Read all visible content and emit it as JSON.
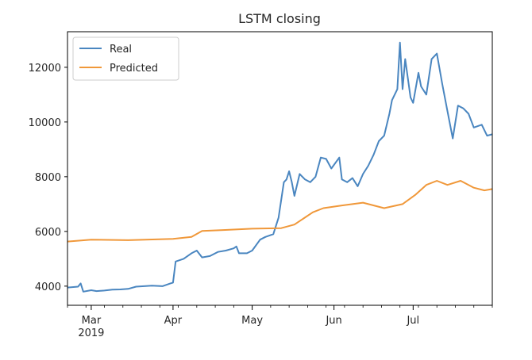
{
  "chart_data": {
    "type": "line",
    "title": "LSTM closing",
    "xlabel": "",
    "ylabel": "",
    "x_range": [
      "2019-02-20",
      "2019-07-31"
    ],
    "ylim": [
      3300,
      13300
    ],
    "y_ticks": [
      4000,
      6000,
      8000,
      10000,
      12000
    ],
    "x_ticks": [
      {
        "date": "2019-03-01",
        "label": "Mar",
        "sublabel": "2019"
      },
      {
        "date": "2019-04-01",
        "label": "Apr",
        "sublabel": ""
      },
      {
        "date": "2019-05-01",
        "label": "May",
        "sublabel": ""
      },
      {
        "date": "2019-06-01",
        "label": "Jun",
        "sublabel": ""
      },
      {
        "date": "2019-07-01",
        "label": "Jul",
        "sublabel": ""
      }
    ],
    "grid": false,
    "legend_position": "top-left",
    "series": [
      {
        "name": "Real",
        "color": "#4a86c0",
        "points": [
          [
            "2019-02-20",
            3950
          ],
          [
            "2019-02-24",
            3980
          ],
          [
            "2019-02-25",
            4100
          ],
          [
            "2019-02-26",
            3800
          ],
          [
            "2019-03-01",
            3850
          ],
          [
            "2019-03-03",
            3820
          ],
          [
            "2019-03-06",
            3840
          ],
          [
            "2019-03-09",
            3870
          ],
          [
            "2019-03-12",
            3880
          ],
          [
            "2019-03-15",
            3900
          ],
          [
            "2019-03-18",
            3980
          ],
          [
            "2019-03-21",
            4000
          ],
          [
            "2019-03-24",
            4020
          ],
          [
            "2019-03-28",
            4000
          ],
          [
            "2019-03-31",
            4100
          ],
          [
            "2019-04-01",
            4130
          ],
          [
            "2019-04-02",
            4900
          ],
          [
            "2019-04-05",
            5000
          ],
          [
            "2019-04-08",
            5200
          ],
          [
            "2019-04-10",
            5300
          ],
          [
            "2019-04-12",
            5050
          ],
          [
            "2019-04-15",
            5100
          ],
          [
            "2019-04-18",
            5250
          ],
          [
            "2019-04-21",
            5300
          ],
          [
            "2019-04-24",
            5380
          ],
          [
            "2019-04-25",
            5450
          ],
          [
            "2019-04-26",
            5200
          ],
          [
            "2019-04-29",
            5200
          ],
          [
            "2019-05-01",
            5300
          ],
          [
            "2019-05-04",
            5700
          ],
          [
            "2019-05-06",
            5800
          ],
          [
            "2019-05-09",
            5900
          ],
          [
            "2019-05-11",
            6500
          ],
          [
            "2019-05-13",
            7800
          ],
          [
            "2019-05-14",
            7900
          ],
          [
            "2019-05-15",
            8200
          ],
          [
            "2019-05-16",
            7800
          ],
          [
            "2019-05-17",
            7300
          ],
          [
            "2019-05-19",
            8100
          ],
          [
            "2019-05-21",
            7900
          ],
          [
            "2019-05-23",
            7800
          ],
          [
            "2019-05-25",
            8000
          ],
          [
            "2019-05-27",
            8700
          ],
          [
            "2019-05-29",
            8650
          ],
          [
            "2019-05-31",
            8300
          ],
          [
            "2019-06-03",
            8700
          ],
          [
            "2019-06-04",
            7900
          ],
          [
            "2019-06-06",
            7800
          ],
          [
            "2019-06-08",
            7950
          ],
          [
            "2019-06-10",
            7650
          ],
          [
            "2019-06-12",
            8100
          ],
          [
            "2019-06-14",
            8400
          ],
          [
            "2019-06-16",
            8800
          ],
          [
            "2019-06-18",
            9300
          ],
          [
            "2019-06-20",
            9500
          ],
          [
            "2019-06-22",
            10300
          ],
          [
            "2019-06-23",
            10800
          ],
          [
            "2019-06-25",
            11200
          ],
          [
            "2019-06-26",
            12900
          ],
          [
            "2019-06-27",
            11200
          ],
          [
            "2019-06-28",
            12300
          ],
          [
            "2019-06-30",
            10900
          ],
          [
            "2019-07-01",
            10700
          ],
          [
            "2019-07-03",
            11800
          ],
          [
            "2019-07-04",
            11300
          ],
          [
            "2019-07-06",
            11000
          ],
          [
            "2019-07-08",
            12300
          ],
          [
            "2019-07-10",
            12500
          ],
          [
            "2019-07-12",
            11400
          ],
          [
            "2019-07-14",
            10400
          ],
          [
            "2019-07-16",
            9400
          ],
          [
            "2019-07-18",
            10600
          ],
          [
            "2019-07-20",
            10500
          ],
          [
            "2019-07-22",
            10300
          ],
          [
            "2019-07-24",
            9800
          ],
          [
            "2019-07-27",
            9900
          ],
          [
            "2019-07-29",
            9500
          ],
          [
            "2019-07-31",
            9550
          ]
        ]
      },
      {
        "name": "Predicted",
        "color": "#f0983a",
        "points": [
          [
            "2019-02-20",
            5630
          ],
          [
            "2019-03-01",
            5700
          ],
          [
            "2019-03-15",
            5680
          ],
          [
            "2019-04-01",
            5730
          ],
          [
            "2019-04-08",
            5800
          ],
          [
            "2019-04-12",
            6020
          ],
          [
            "2019-04-20",
            6050
          ],
          [
            "2019-05-01",
            6100
          ],
          [
            "2019-05-12",
            6120
          ],
          [
            "2019-05-17",
            6250
          ],
          [
            "2019-05-24",
            6700
          ],
          [
            "2019-05-28",
            6850
          ],
          [
            "2019-06-04",
            6950
          ],
          [
            "2019-06-12",
            7050
          ],
          [
            "2019-06-20",
            6850
          ],
          [
            "2019-06-27",
            7000
          ],
          [
            "2019-07-02",
            7350
          ],
          [
            "2019-07-06",
            7700
          ],
          [
            "2019-07-10",
            7850
          ],
          [
            "2019-07-14",
            7700
          ],
          [
            "2019-07-19",
            7850
          ],
          [
            "2019-07-24",
            7600
          ],
          [
            "2019-07-28",
            7500
          ],
          [
            "2019-07-31",
            7550
          ]
        ]
      }
    ]
  }
}
